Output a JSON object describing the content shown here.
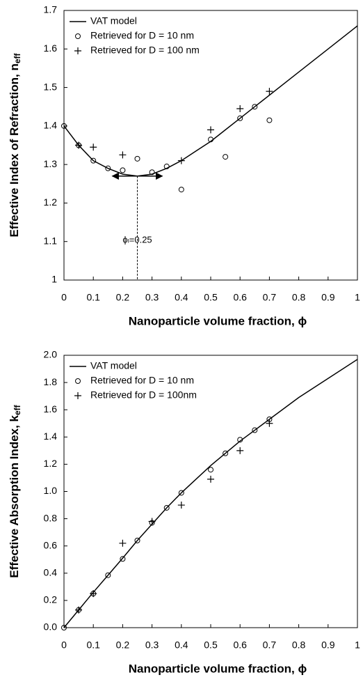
{
  "chart_data": [
    {
      "type": "line",
      "ylabel": "Effective Index of Refraction, n",
      "ylabel_subscript": "eff",
      "xlabel": "Nanoparticle volume fraction, ϕ",
      "xlim": [
        0,
        1
      ],
      "xticks": [
        0,
        0.1,
        0.2,
        0.3,
        0.4,
        0.5,
        0.6,
        0.7,
        0.8,
        0.9,
        1
      ],
      "ylim": [
        1,
        1.7
      ],
      "yticks": [
        1,
        1.1,
        1.2,
        1.3,
        1.4,
        1.5,
        1.6,
        1.7
      ],
      "legend": "top-left",
      "annotation": {
        "text": "ϕₗ=0.25",
        "x": 0.25,
        "y": 1.27
      },
      "series": [
        {
          "name": "VAT model",
          "color": "#000000",
          "marker": "none",
          "x": [
            0,
            0.05,
            0.1,
            0.15,
            0.2,
            0.25,
            0.3,
            0.35,
            0.4,
            0.45,
            0.5,
            0.55,
            0.6,
            0.65,
            0.7,
            0.8,
            0.9,
            1
          ],
          "values": [
            1.4,
            1.35,
            1.31,
            1.29,
            1.275,
            1.27,
            1.275,
            1.29,
            1.31,
            1.335,
            1.36,
            1.39,
            1.42,
            1.45,
            1.48,
            1.54,
            1.6,
            1.66
          ]
        },
        {
          "name": "Retrieved for D = 10 nm",
          "color": "#000000",
          "marker": "circle",
          "x": [
            0,
            0.05,
            0.1,
            0.15,
            0.2,
            0.25,
            0.3,
            0.35,
            0.4,
            0.5,
            0.55,
            0.6,
            0.65,
            0.7
          ],
          "values": [
            1.4,
            1.35,
            1.31,
            1.29,
            1.285,
            1.315,
            1.28,
            1.295,
            1.235,
            1.365,
            1.32,
            1.42,
            1.45,
            1.415
          ]
        },
        {
          "name": "Retrieved for D = 100 nm",
          "color": "#000000",
          "marker": "plus",
          "x": [
            0.05,
            0.1,
            0.2,
            0.4,
            0.5,
            0.6,
            0.7
          ],
          "values": [
            1.35,
            1.345,
            1.325,
            1.31,
            1.39,
            1.445,
            1.49
          ]
        }
      ]
    },
    {
      "type": "line",
      "ylabel": "Effective Absorption Index, k",
      "ylabel_subscript": "eff",
      "xlabel": "Nanoparticle volume fraction, ϕ",
      "xlim": [
        0,
        1
      ],
      "xticks": [
        0,
        0.1,
        0.2,
        0.3,
        0.4,
        0.5,
        0.6,
        0.7,
        0.8,
        0.9,
        1
      ],
      "ylim": [
        0,
        2
      ],
      "yticks": [
        {
          "value": 0,
          "label": "0.0"
        },
        0.2,
        0.4,
        0.6,
        0.8,
        {
          "value": 1,
          "label": "1.0"
        },
        1.2,
        1.4,
        1.6,
        1.8,
        {
          "value": 2,
          "label": "2.0"
        }
      ],
      "legend": "top-left",
      "series": [
        {
          "name": "VAT model",
          "color": "#000000",
          "marker": "none",
          "x": [
            0,
            0.05,
            0.1,
            0.15,
            0.2,
            0.25,
            0.3,
            0.35,
            0.4,
            0.5,
            0.6,
            0.7,
            0.8,
            0.9,
            1
          ],
          "values": [
            0,
            0.13,
            0.26,
            0.385,
            0.51,
            0.64,
            0.76,
            0.88,
            0.99,
            1.19,
            1.37,
            1.53,
            1.69,
            1.83,
            1.97
          ]
        },
        {
          "name": "Retrieved for D = 10 nm",
          "color": "#000000",
          "marker": "circle",
          "x": [
            0,
            0.05,
            0.1,
            0.15,
            0.2,
            0.25,
            0.3,
            0.35,
            0.4,
            0.5,
            0.55,
            0.6,
            0.65,
            0.7
          ],
          "values": [
            0,
            0.13,
            0.25,
            0.385,
            0.505,
            0.64,
            0.77,
            0.88,
            0.99,
            1.16,
            1.28,
            1.38,
            1.45,
            1.53
          ]
        },
        {
          "name": "Retrieved for D = 100nm",
          "color": "#000000",
          "marker": "plus",
          "x": [
            0.05,
            0.1,
            0.2,
            0.3,
            0.4,
            0.5,
            0.6,
            0.7
          ],
          "values": [
            0.13,
            0.25,
            0.62,
            0.78,
            0.9,
            1.09,
            1.3,
            1.5
          ]
        }
      ]
    }
  ]
}
